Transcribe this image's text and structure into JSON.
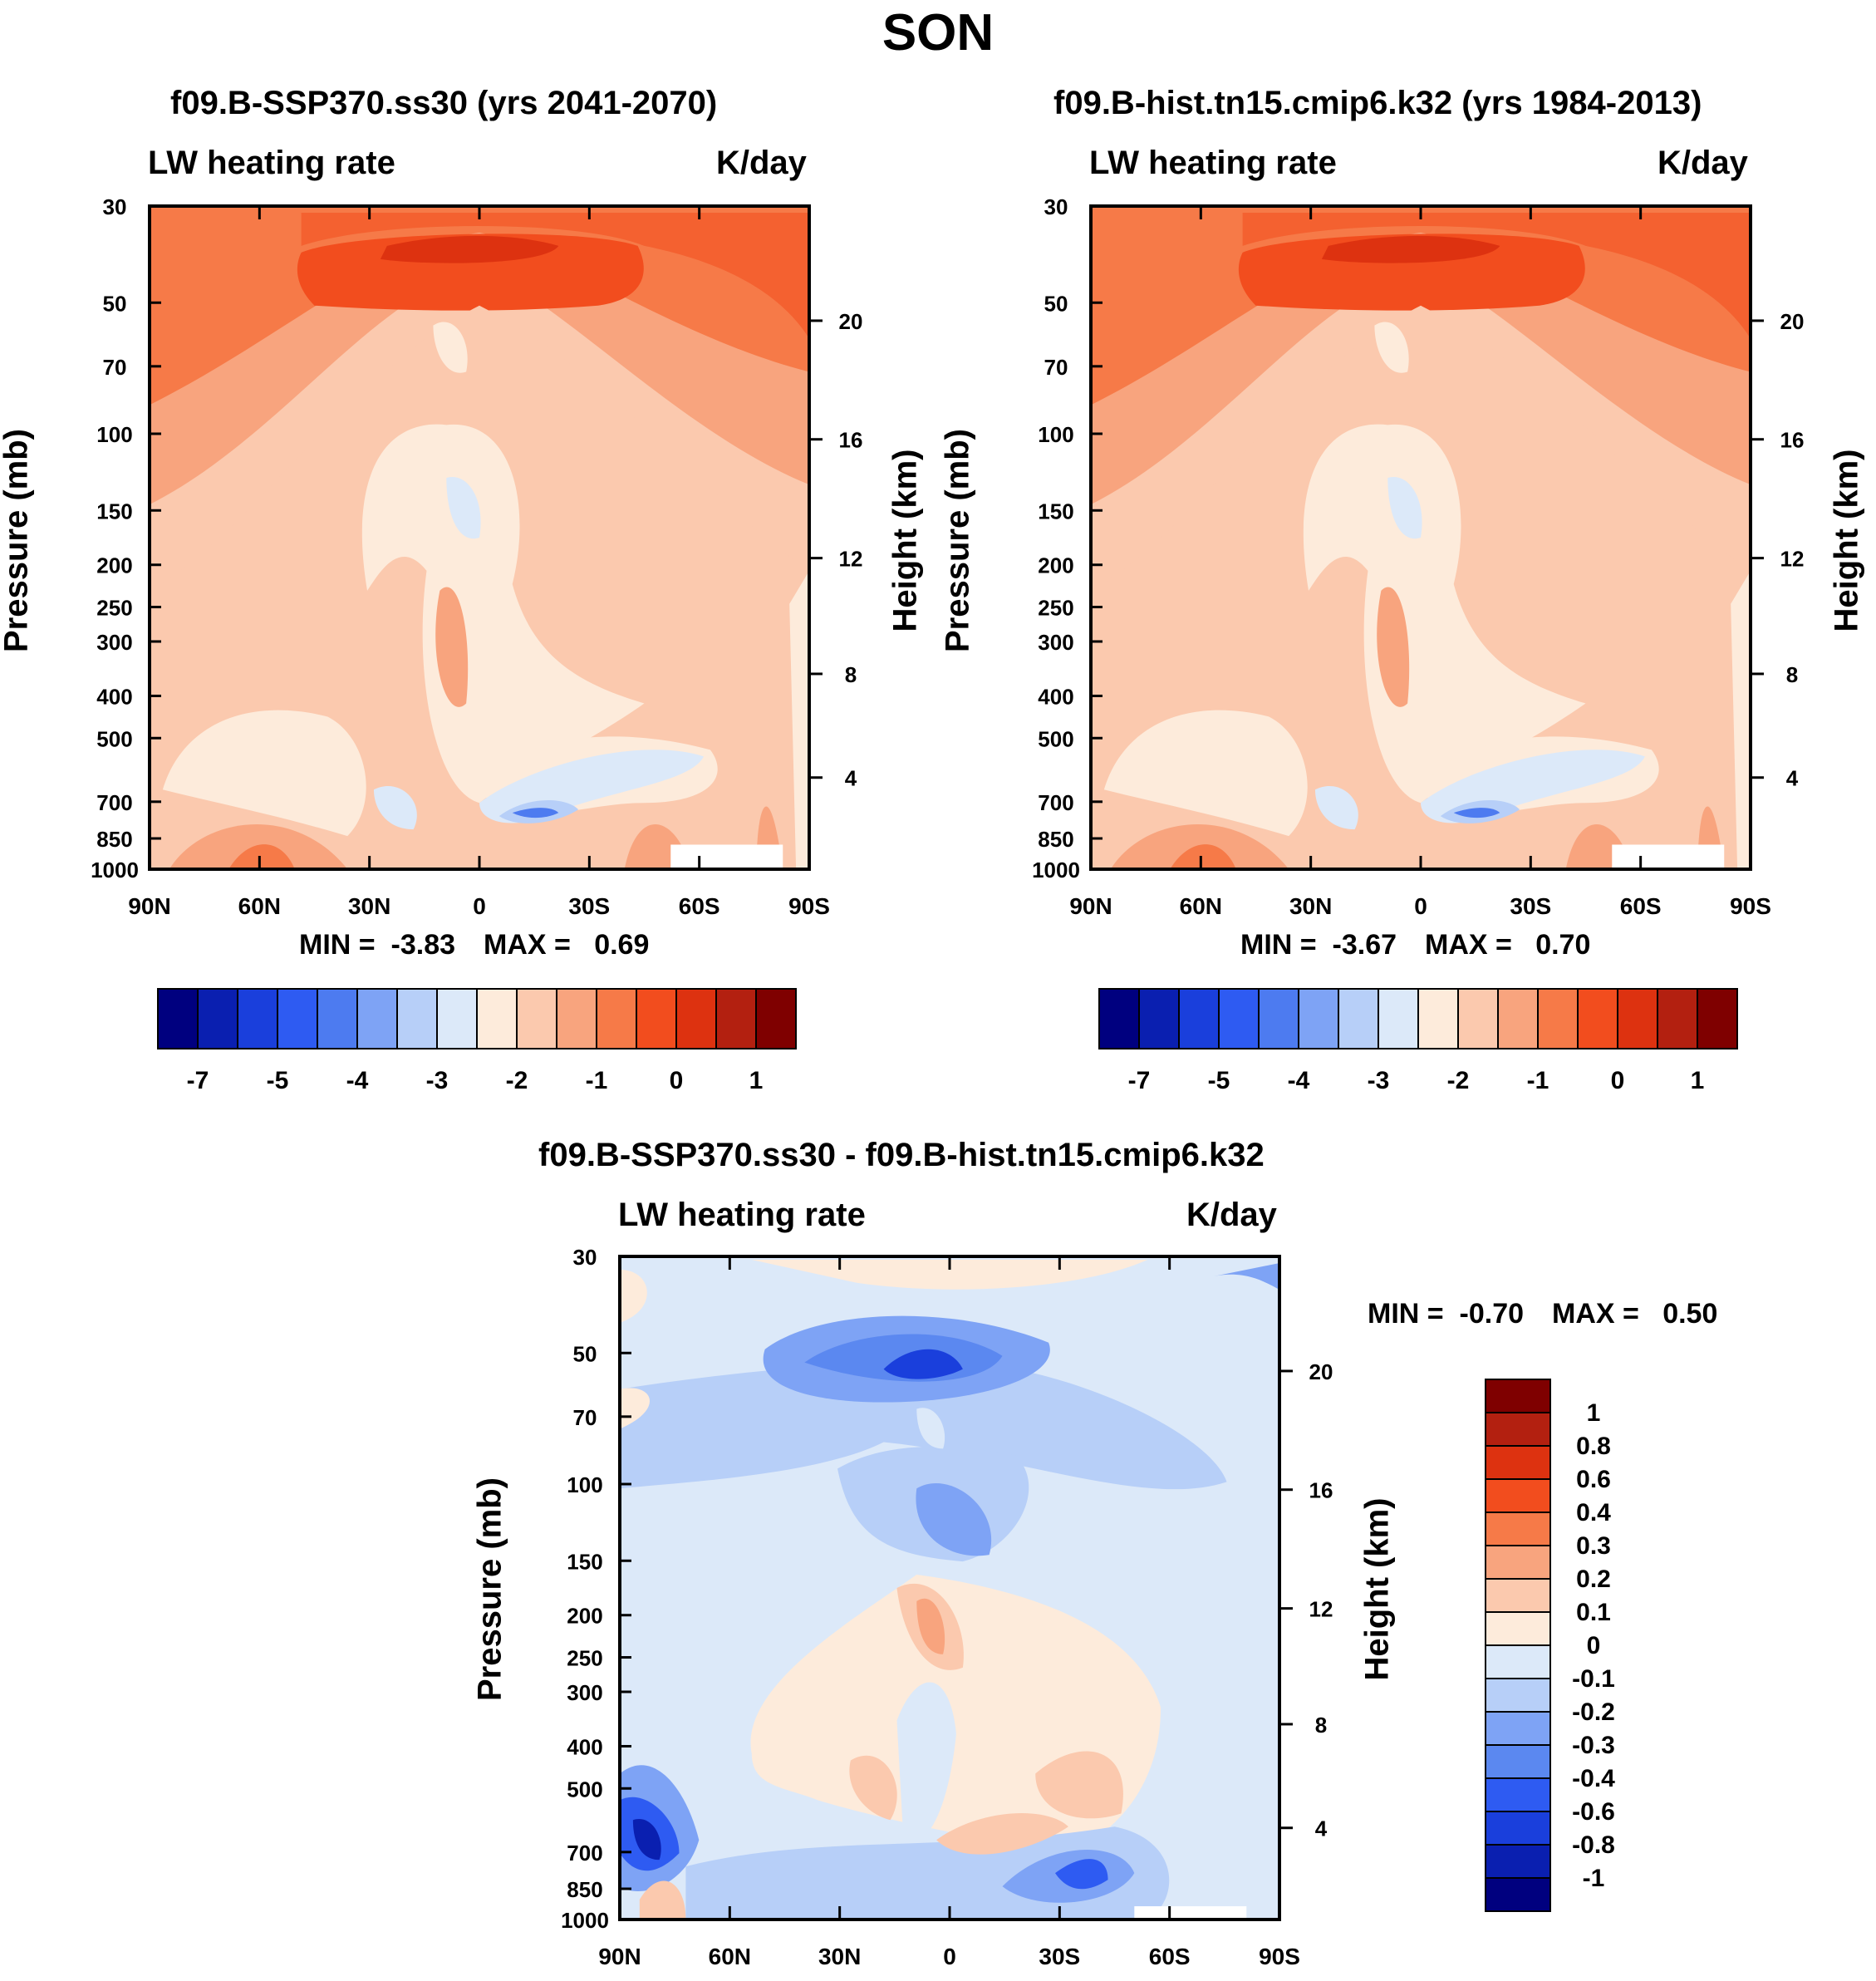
{
  "figure": {
    "title": "SON",
    "plot_variable": "LW heating rate",
    "units": "K/day",
    "y_label": "Pressure (mb)",
    "y2_label": "Height (km)"
  },
  "colors": {
    "abs_scale": [
      "#00007f",
      "#0a1fb0",
      "#1a3fdc",
      "#2e5bf2",
      "#4d7bf0",
      "#7ea3f5",
      "#b7cff8",
      "#dce9f9",
      "#fdebdb",
      "#fbc9ae",
      "#f8a47e",
      "#f67a48",
      "#f24d1e",
      "#dd3210",
      "#b32010",
      "#7f0000"
    ],
    "diff_scale": [
      "#7f0000",
      "#b32010",
      "#dd3210",
      "#f24d1e",
      "#f67a48",
      "#f8a47e",
      "#fbc9ae",
      "#fdebdb",
      "#dce9f9",
      "#b7cff8",
      "#7ea3f5",
      "#5b88f0",
      "#2e5bf2",
      "#1a3fdc",
      "#0a1fb0",
      "#00007f"
    ]
  },
  "chart_data": [
    {
      "type": "contour",
      "title": "f09.B-SSP370.ss30 (yrs 2041-2070)",
      "left_label": "LW heating rate",
      "right_label": "K/day",
      "xlabel": "",
      "ylabel": "Pressure (mb)",
      "y2label": "Height (km)",
      "x_ticks": [
        "90N",
        "60N",
        "30N",
        "0",
        "30S",
        "60S",
        "90S"
      ],
      "y_ticks": [
        30,
        50,
        70,
        100,
        150,
        200,
        250,
        300,
        400,
        500,
        700,
        850,
        1000
      ],
      "y2_ticks": [
        20,
        16,
        12,
        8,
        4
      ],
      "ylim": [
        1000,
        30
      ],
      "stats": {
        "min": -3.83,
        "max": 0.69
      },
      "min_text": "MIN =  -3.83",
      "max_text": "MAX =   0.69",
      "colorbar": {
        "orientation": "horizontal",
        "labels": [
          "-7",
          "-5",
          "-4",
          "-3",
          "-2",
          "-1",
          "0",
          "1"
        ]
      }
    },
    {
      "type": "contour",
      "title": "f09.B-hist.tn15.cmip6.k32 (yrs 1984-2013)",
      "left_label": "LW heating rate",
      "right_label": "K/day",
      "xlabel": "",
      "ylabel": "Pressure (mb)",
      "y2label": "Height (km)",
      "x_ticks": [
        "90N",
        "60N",
        "30N",
        "0",
        "30S",
        "60S",
        "90S"
      ],
      "y_ticks": [
        30,
        50,
        70,
        100,
        150,
        200,
        250,
        300,
        400,
        500,
        700,
        850,
        1000
      ],
      "y2_ticks": [
        20,
        16,
        12,
        8,
        4
      ],
      "ylim": [
        1000,
        30
      ],
      "stats": {
        "min": -3.67,
        "max": 0.7
      },
      "min_text": "MIN =  -3.67",
      "max_text": "MAX =   0.70",
      "colorbar": {
        "orientation": "horizontal",
        "labels": [
          "-7",
          "-5",
          "-4",
          "-3",
          "-2",
          "-1",
          "0",
          "1"
        ]
      }
    },
    {
      "type": "contour",
      "title": "f09.B-SSP370.ss30 - f09.B-hist.tn15.cmip6.k32",
      "left_label": "LW heating rate",
      "right_label": "K/day",
      "xlabel": "",
      "ylabel": "Pressure (mb)",
      "y2label": "Height (km)",
      "x_ticks": [
        "90N",
        "60N",
        "30N",
        "0",
        "30S",
        "60S",
        "90S"
      ],
      "y_ticks": [
        30,
        50,
        70,
        100,
        150,
        200,
        250,
        300,
        400,
        500,
        700,
        850,
        1000
      ],
      "y2_ticks": [
        20,
        16,
        12,
        8,
        4
      ],
      "ylim": [
        1000,
        30
      ],
      "stats": {
        "min": -0.7,
        "max": 0.5
      },
      "min_text": "MIN =  -0.70",
      "max_text": "MAX =   0.50",
      "colorbar": {
        "orientation": "vertical",
        "labels": [
          "1",
          "0.8",
          "0.6",
          "0.4",
          "0.3",
          "0.2",
          "0.1",
          "0",
          "-0.1",
          "-0.2",
          "-0.3",
          "-0.4",
          "-0.6",
          "-0.8",
          "-1"
        ]
      }
    }
  ]
}
